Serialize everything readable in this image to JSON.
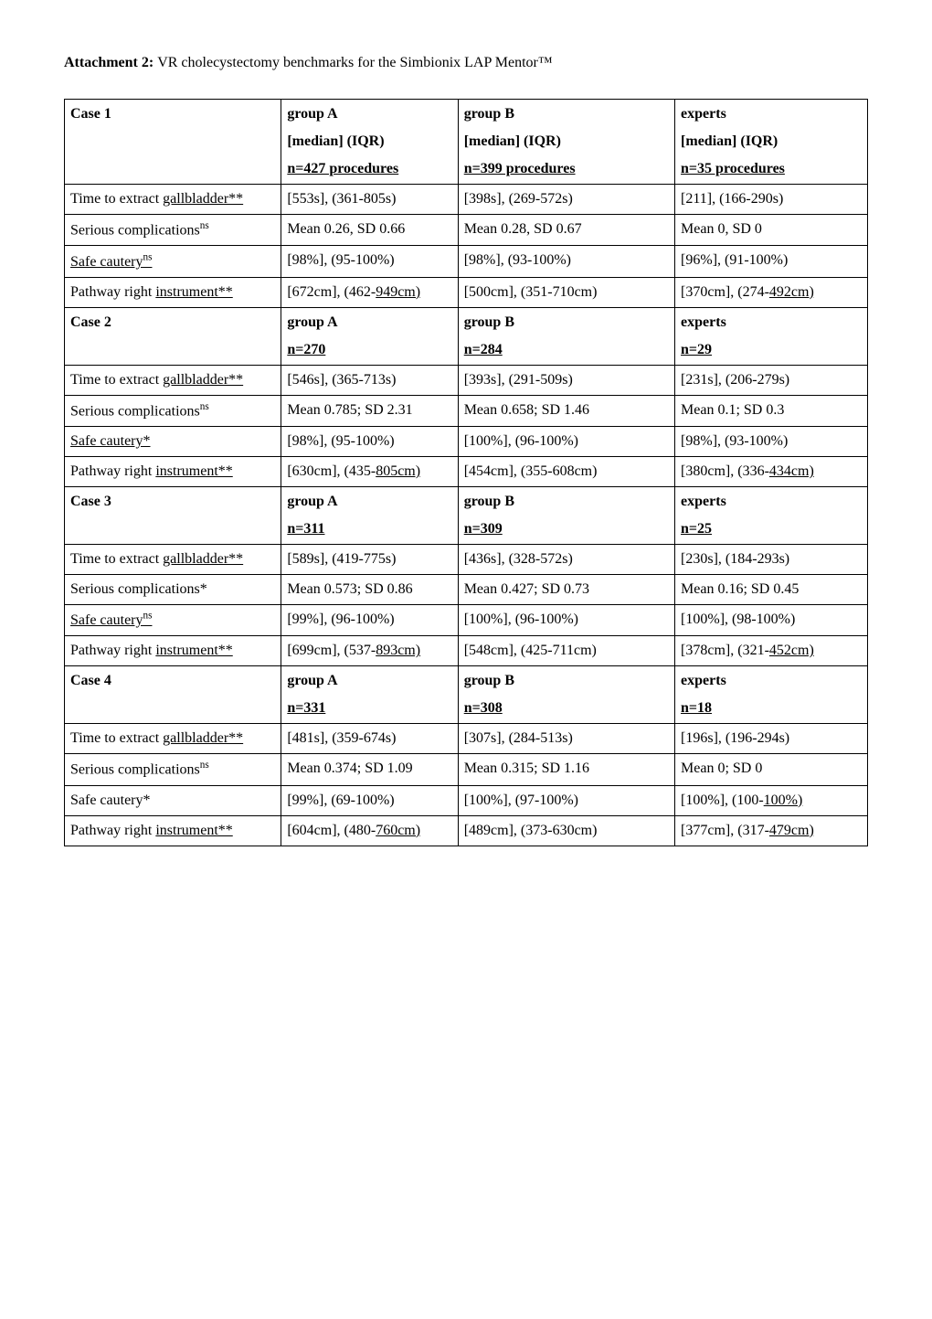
{
  "title_bold": "Attachment 2: ",
  "title_rest": "VR cholecystectomy benchmarks for the Simbionix LAP Mentor™",
  "cases": [
    {
      "header": {
        "label": "Case 1",
        "a1": "group A",
        "a2": "[median] (IQR)",
        "a3": "n=427 procedures",
        "b1": "group B",
        "b2": "[median] (IQR)",
        "b3": "n=399 procedures",
        "e1": "experts",
        "e2": "[median] (IQR)",
        "e3": "n=35 procedures"
      },
      "rows": [
        {
          "label_html": "Time to extract <span class=\"u\">gallbladder**</span>",
          "a": "[553s], (361-805s)",
          "b": "[398s], (269-572s)",
          "e": "[211], (166-290s)"
        },
        {
          "label_html": "Serious complications<sup>ns</sup>",
          "a": "Mean 0.26, SD 0.66",
          "b": "Mean 0.28, SD 0.67",
          "e": "Mean 0, SD 0"
        },
        {
          "label_html": "<span class=\"u\">Safe cautery<sup>ns</sup></span>",
          "a": "[98%], (95-100%)",
          "b": "[98%], (93-100%)",
          "e": "[96%], (91-100%)"
        },
        {
          "label_html": "Pathway right <span class=\"u\">instrument**</span>",
          "a": "[672cm], (462-<span class=\"u\">949cm)</span>",
          "b": "[500cm], (351-710cm)",
          "e": "[370cm], (274-<span class=\"u\">492cm)</span>"
        }
      ]
    },
    {
      "header": {
        "label": "Case 2",
        "a1": "group A",
        "a2": "n=270",
        "b1": "group B",
        "b2": "n=284",
        "e1": "experts",
        "e2": "n=29"
      },
      "rows": [
        {
          "label_html": "Time to extract <span class=\"u\">gallbladder**</span>",
          "a": "[546s], (365-713s)",
          "b": "[393s], (291-509s)",
          "e": "[231s], (206-279s)"
        },
        {
          "label_html": "Serious complications<sup>ns</sup>",
          "a": "Mean 0.785; SD 2.31",
          "b": "Mean 0.658; SD 1.46",
          "e": "Mean 0.1; SD 0.3"
        },
        {
          "label_html": "<span class=\"u\">Safe cautery*</span>",
          "a": "[98%], (95-100%)",
          "b": "[100%], (96-100%)",
          "e": "[98%], (93-100%)"
        },
        {
          "label_html": "Pathway right <span class=\"u\">instrument**</span>",
          "a": "[630cm], (435-<span class=\"u\">805cm)</span>",
          "b": "[454cm], (355-608cm)",
          "e": "[380cm], (336-<span class=\"u\">434cm)</span>"
        }
      ]
    },
    {
      "header": {
        "label": "Case 3",
        "a1": "group A",
        "a2": "n=311",
        "b1": "group B",
        "b2": "n=309",
        "e1": "experts",
        "e2": "n=25"
      },
      "rows": [
        {
          "label_html": "Time to extract <span class=\"u\">gallbladder**</span>",
          "a": "[589s], (419-775s)",
          "b": "[436s], (328-572s)",
          "e": "[230s], (184-293s)"
        },
        {
          "label_html": "Serious complications*",
          "a": "Mean 0.573; SD 0.86",
          "b": "Mean 0.427; SD 0.73",
          "e": "Mean 0.16; SD 0.45"
        },
        {
          "label_html": "<span class=\"u\">Safe cautery<sup>ns</sup></span>",
          "a": "[99%], (96-100%)",
          "b": "[100%], (96-100%)",
          "e": "[100%], (98-100%)"
        },
        {
          "label_html": "Pathway right <span class=\"u\">instrument**</span>",
          "a": "[699cm], (537-<span class=\"u\">893cm)</span>",
          "b": "[548cm], (425-711cm)",
          "e": "[378cm], (321-<span class=\"u\">452cm)</span>"
        }
      ]
    },
    {
      "header": {
        "label": "Case 4",
        "a1": "group A",
        "a2": "n=331",
        "b1": "group B",
        "b2": "n=308",
        "e1": "experts",
        "e2": "n=18"
      },
      "rows": [
        {
          "label_html": "Time to extract <span class=\"u\">gallbladder**</span>",
          "a": "[481s], (359-674s)",
          "b": "[307s], (284-513s)",
          "e": "[196s], (196-294s)"
        },
        {
          "label_html": "Serious complications<sup>ns</sup>",
          "a": "Mean 0.374; SD 1.09",
          "b": "Mean 0.315; SD 1.16",
          "e": "Mean 0; SD 0"
        },
        {
          "label_html": "Safe cautery*",
          "a": "[99%], (69-100%)",
          "b": "[100%], (97-100%)",
          "e": "[100%], (100-<span class=\"u\">100%)</span>"
        },
        {
          "label_html": "Pathway right <span class=\"u\">instrument**</span>",
          "a": "[604cm], (480-<span class=\"u\">760cm)</span>",
          "b": "[489cm], (373-630cm)",
          "e": "[377cm], (317-<span class=\"u\">479cm)</span>"
        }
      ]
    }
  ]
}
